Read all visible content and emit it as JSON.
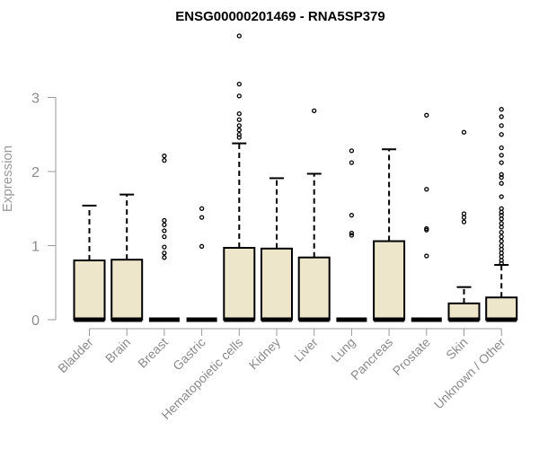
{
  "chart_data": {
    "type": "box",
    "title": "ENSG00000201469 - RNA5SP379",
    "xlabel": "",
    "ylabel": "Expression",
    "ylim": [
      0,
      3.9
    ],
    "yticks": [
      0,
      1,
      2,
      3
    ],
    "categories": [
      "Bladder",
      "Brain",
      "Breast",
      "Gastric",
      "Hematopoietic cells",
      "Kidney",
      "Liver",
      "Lung",
      "Pancreas",
      "Prostate",
      "Skin",
      "Unknown / Other"
    ],
    "boxes": [
      {
        "min": 0,
        "q1": 0,
        "median": 0,
        "q3": 0.8,
        "max": 1.54,
        "outliers": []
      },
      {
        "min": 0,
        "q1": 0,
        "median": 0,
        "q3": 0.81,
        "max": 1.69,
        "outliers": []
      },
      {
        "min": 0,
        "q1": 0,
        "median": 0,
        "q3": 0,
        "max": 0,
        "outliers": [
          2.21,
          2.15,
          1.34,
          1.28,
          1.2,
          1.12,
          0.98,
          0.9,
          0.84
        ]
      },
      {
        "min": 0,
        "q1": 0,
        "median": 0,
        "q3": 0,
        "max": 0,
        "outliers": [
          1.5,
          1.38,
          0.99
        ]
      },
      {
        "min": 0,
        "q1": 0,
        "median": 0,
        "q3": 0.97,
        "max": 2.38,
        "outliers": [
          3.83,
          3.18,
          3.02,
          2.78,
          2.7,
          2.62,
          2.56,
          2.5,
          2.46
        ]
      },
      {
        "min": 0,
        "q1": 0,
        "median": 0,
        "q3": 0.96,
        "max": 1.91,
        "outliers": []
      },
      {
        "min": 0,
        "q1": 0,
        "median": 0,
        "q3": 0.84,
        "max": 1.97,
        "outliers": [
          2.82
        ]
      },
      {
        "min": 0,
        "q1": 0,
        "median": 0,
        "q3": 0,
        "max": 0,
        "outliers": [
          2.28,
          2.12,
          1.41,
          1.17,
          1.14
        ]
      },
      {
        "min": 0,
        "q1": 0,
        "median": 0,
        "q3": 1.06,
        "max": 2.3,
        "outliers": []
      },
      {
        "min": 0,
        "q1": 0,
        "median": 0,
        "q3": 0,
        "max": 0,
        "outliers": [
          2.76,
          1.76,
          1.23,
          1.21,
          0.86
        ]
      },
      {
        "min": 0,
        "q1": 0,
        "median": 0,
        "q3": 0.22,
        "max": 0.44,
        "outliers": [
          2.53,
          1.43,
          1.38,
          1.32
        ]
      },
      {
        "min": 0,
        "q1": 0,
        "median": 0,
        "q3": 0.3,
        "max": 0.74,
        "outliers": [
          2.84,
          2.74,
          2.62,
          2.5,
          2.32,
          2.22,
          2.12,
          1.96,
          1.92,
          1.84,
          1.66,
          1.5,
          1.45,
          1.41,
          1.36,
          1.3,
          1.25,
          1.18,
          1.12,
          1.06,
          1.0,
          0.95,
          0.9,
          0.85,
          0.8,
          0.76
        ]
      }
    ],
    "grid": false,
    "legend": "none",
    "colors": {
      "box_fill": "#ede6cb",
      "box_stroke": "#000000",
      "axis": "#9a9a9a",
      "text": "#8a8a8a"
    }
  }
}
